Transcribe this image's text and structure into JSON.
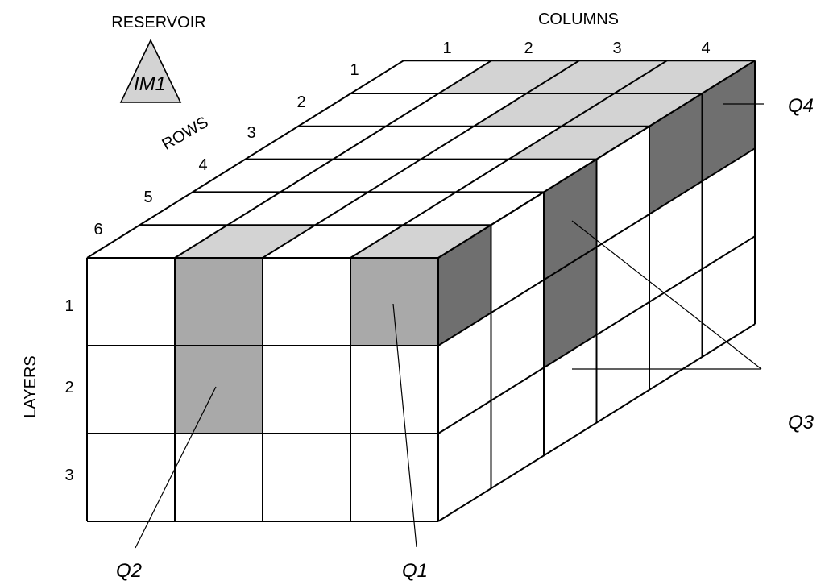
{
  "title_left": "RESERVOIR",
  "title_columns": "COLUMNS",
  "label_rows": "ROWS",
  "label_layers": "LAYERS",
  "reservoir_symbol": "IM1",
  "columns": [
    "1",
    "2",
    "3",
    "4"
  ],
  "rows": [
    "1",
    "2",
    "3",
    "4",
    "5",
    "6"
  ],
  "layers": [
    "1",
    "2",
    "3"
  ],
  "wells": {
    "q1": "Q1",
    "q2": "Q2",
    "q3": "Q3",
    "q4": "Q4"
  },
  "colors": {
    "top_shade": "#d3d3d3",
    "front_shade": "#a9a9a9",
    "side_shade": "#6f6f6f",
    "triangle_fill": "#d3d3d3",
    "line": "#000000"
  }
}
